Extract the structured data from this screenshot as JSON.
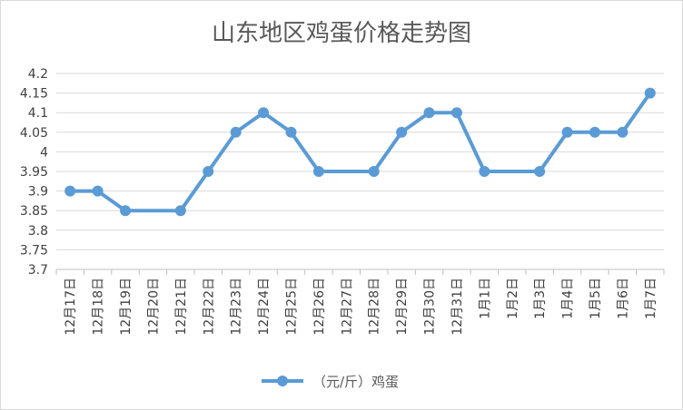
{
  "chart_data": {
    "type": "line",
    "title": "山东地区鸡蛋价格走势图",
    "xlabel": "",
    "ylabel": "",
    "categories": [
      "12月17日",
      "12月18日",
      "12月19日",
      "12月20日",
      "12月21日",
      "12月22日",
      "12月23日",
      "12月24日",
      "12月25日",
      "12月26日",
      "12月27日",
      "12月28日",
      "12月29日",
      "12月30日",
      "12月31日",
      "1月1日",
      "1月2日",
      "1月3日",
      "1月4日",
      "1月5日",
      "1月6日",
      "1月7日"
    ],
    "series": [
      {
        "name": "（元/斤）鸡蛋",
        "values": [
          3.9,
          3.9,
          3.85,
          null,
          3.85,
          3.95,
          4.05,
          4.1,
          4.05,
          3.95,
          null,
          3.95,
          4.05,
          4.1,
          4.1,
          3.95,
          null,
          3.95,
          4.05,
          4.05,
          4.05,
          4.15
        ],
        "color": "#5b9bd5"
      }
    ],
    "ylim": [
      3.7,
      4.2
    ],
    "yticks": [
      "4.2",
      "4.15",
      "4.1",
      "4.05",
      "4",
      "3.95",
      "3.9",
      "3.85",
      "3.8",
      "3.75",
      "3.7"
    ],
    "grid": true,
    "legend_position": "bottom"
  }
}
